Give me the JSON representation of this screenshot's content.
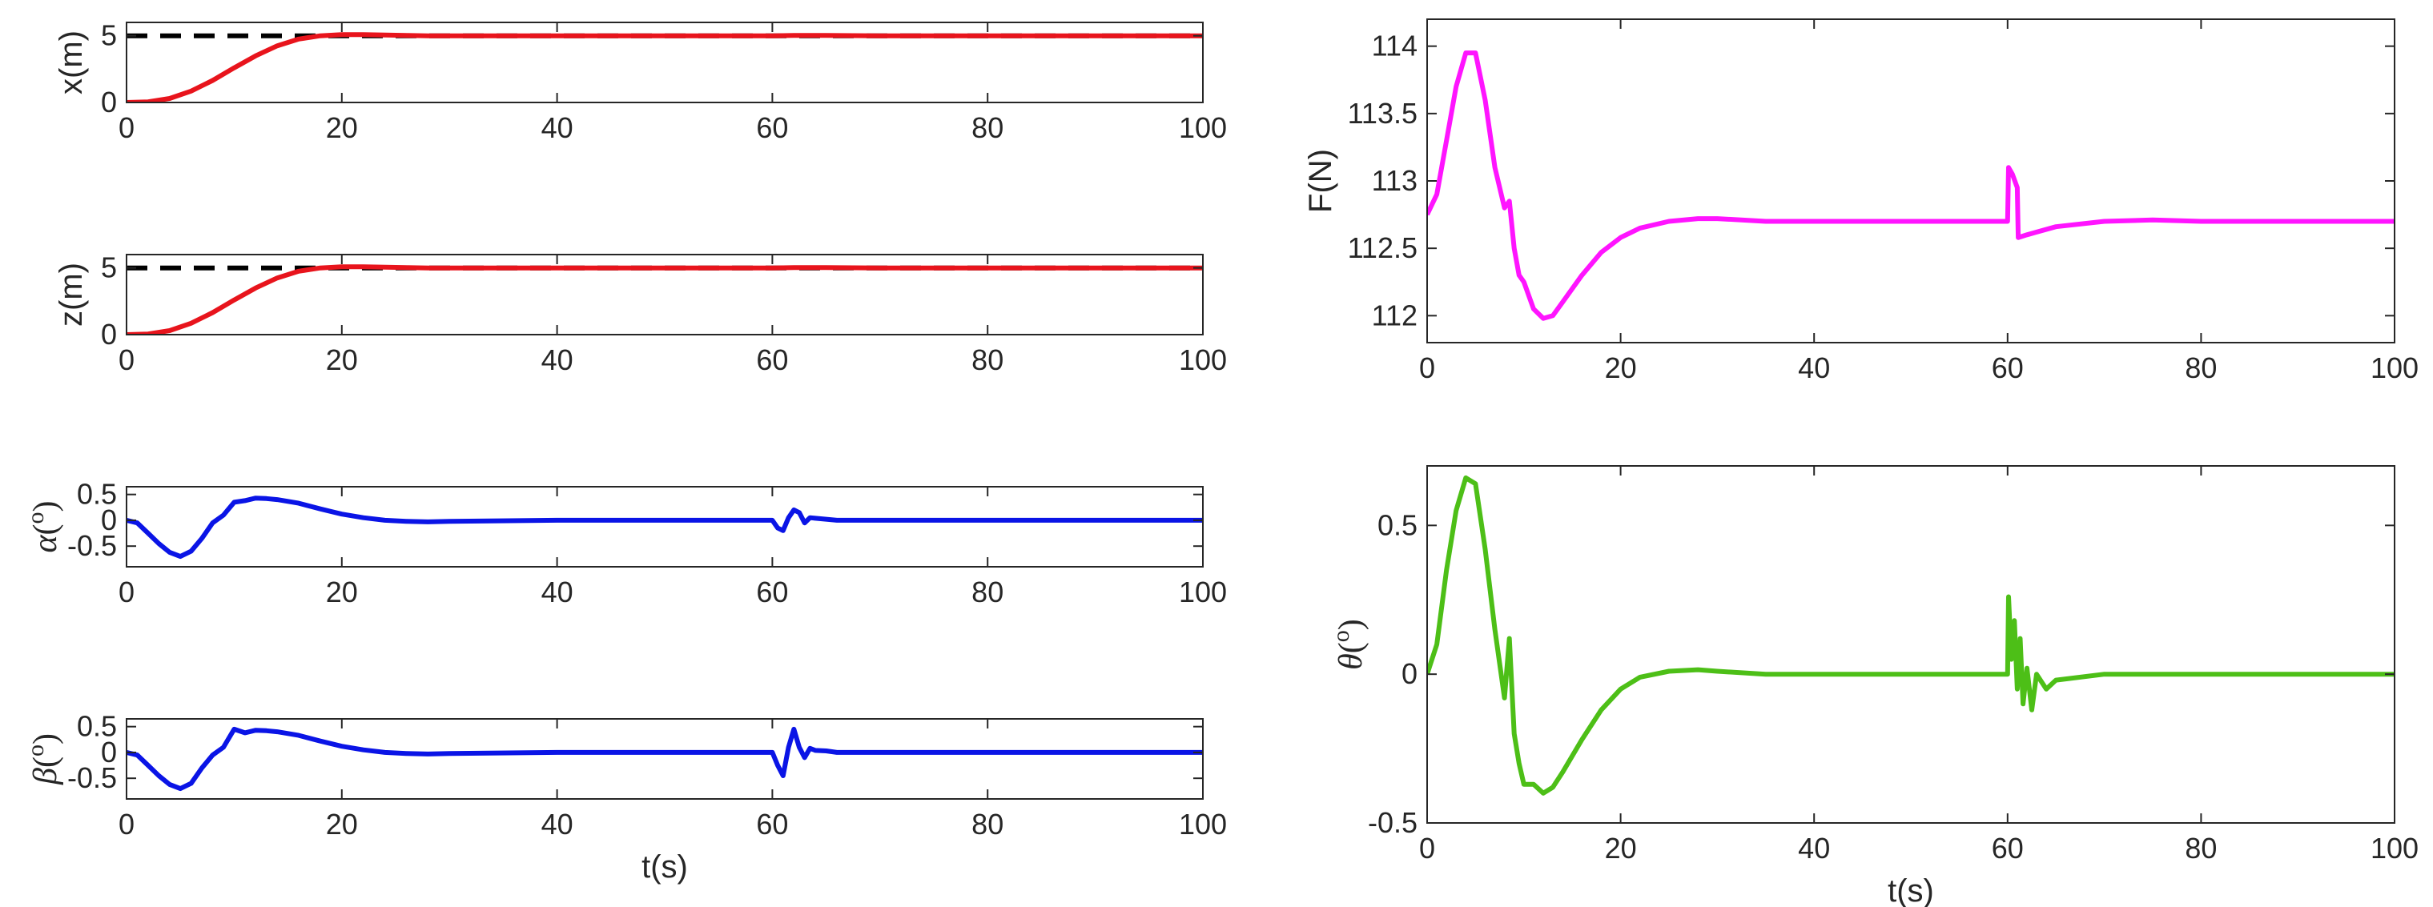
{
  "chart_data": [
    {
      "type": "line",
      "name": "x-position",
      "ylabel": "x(m)",
      "xlabel": "",
      "xlim": [
        0,
        100
      ],
      "ylim": [
        0,
        6
      ],
      "xticks": [
        0,
        20,
        40,
        60,
        80,
        100
      ],
      "xtick_labels": [
        "0",
        "20",
        "40",
        "60",
        "80",
        "100"
      ],
      "yticks": [
        0,
        5
      ],
      "ytick_labels": [
        "0",
        "5"
      ],
      "series": [
        {
          "name": "reference",
          "color": "#000000",
          "style": "dashed",
          "x": [
            0,
            100
          ],
          "y": [
            5,
            5
          ]
        },
        {
          "name": "response",
          "color": "#e8141c",
          "style": "solid",
          "x": [
            0,
            2,
            4,
            6,
            8,
            10,
            12,
            14,
            16,
            18,
            20,
            22,
            24,
            26,
            28,
            30,
            40,
            50,
            60,
            62,
            65,
            70,
            80,
            90,
            100
          ],
          "y": [
            0,
            0.05,
            0.3,
            0.85,
            1.65,
            2.6,
            3.5,
            4.25,
            4.75,
            5.0,
            5.08,
            5.08,
            5.05,
            5.02,
            5.0,
            5.0,
            5.0,
            5.0,
            5.0,
            5.03,
            5.02,
            5.0,
            5.0,
            5.0,
            5.0
          ]
        }
      ]
    },
    {
      "type": "line",
      "name": "z-position",
      "ylabel": "z(m)",
      "xlabel": "",
      "xlim": [
        0,
        100
      ],
      "ylim": [
        0,
        6
      ],
      "xticks": [
        0,
        20,
        40,
        60,
        80,
        100
      ],
      "xtick_labels": [
        "0",
        "20",
        "40",
        "60",
        "80",
        "100"
      ],
      "yticks": [
        0,
        5
      ],
      "ytick_labels": [
        "0",
        "5"
      ],
      "series": [
        {
          "name": "reference",
          "color": "#000000",
          "style": "dashed",
          "x": [
            0,
            100
          ],
          "y": [
            5,
            5
          ]
        },
        {
          "name": "response",
          "color": "#e8141c",
          "style": "solid",
          "x": [
            0,
            2,
            4,
            6,
            8,
            10,
            12,
            14,
            16,
            18,
            20,
            22,
            24,
            26,
            28,
            30,
            40,
            50,
            60,
            62,
            65,
            70,
            80,
            90,
            100
          ],
          "y": [
            0,
            0.05,
            0.3,
            0.85,
            1.65,
            2.6,
            3.5,
            4.25,
            4.75,
            5.0,
            5.08,
            5.08,
            5.05,
            5.02,
            5.0,
            5.0,
            5.0,
            5.0,
            5.0,
            5.03,
            5.02,
            5.0,
            5.0,
            5.0,
            5.0
          ]
        }
      ]
    },
    {
      "type": "line",
      "name": "alpha",
      "ylabel": "α(o)",
      "ylabel_greek": "α",
      "ylabel_sup": "o",
      "xlabel": "",
      "xlim": [
        0,
        100
      ],
      "ylim": [
        -0.9,
        0.65
      ],
      "xticks": [
        0,
        20,
        40,
        60,
        80,
        100
      ],
      "xtick_labels": [
        "0",
        "20",
        "40",
        "60",
        "80",
        "100"
      ],
      "yticks": [
        0.5,
        0,
        -0.5
      ],
      "ytick_labels": [
        "0.5",
        "0",
        "-0.5"
      ],
      "series": [
        {
          "name": "alpha",
          "color": "#0a14e6",
          "style": "solid",
          "x": [
            0,
            1,
            2,
            3,
            4,
            5,
            6,
            7,
            8,
            9,
            10,
            11,
            12,
            13,
            14,
            16,
            18,
            20,
            22,
            24,
            26,
            28,
            30,
            40,
            50,
            60,
            60.5,
            61,
            61.5,
            62,
            62.5,
            63,
            63.5,
            64,
            65,
            66,
            70,
            80,
            90,
            100
          ],
          "y": [
            0,
            -0.05,
            -0.25,
            -0.45,
            -0.62,
            -0.7,
            -0.6,
            -0.35,
            -0.05,
            0.1,
            0.35,
            0.38,
            0.43,
            0.42,
            0.4,
            0.33,
            0.22,
            0.12,
            0.05,
            0.0,
            -0.02,
            -0.03,
            -0.02,
            0,
            0,
            0,
            -0.15,
            -0.2,
            0.05,
            0.2,
            0.15,
            -0.05,
            0.05,
            0.04,
            0.02,
            0,
            0,
            0,
            0,
            0
          ]
        }
      ]
    },
    {
      "type": "line",
      "name": "beta",
      "ylabel": "β(o)",
      "ylabel_greek": "β",
      "ylabel_sup": "o",
      "xlabel": "t(s)",
      "xlim": [
        0,
        100
      ],
      "ylim": [
        -0.9,
        0.65
      ],
      "xticks": [
        0,
        20,
        40,
        60,
        80,
        100
      ],
      "xtick_labels": [
        "0",
        "20",
        "40",
        "60",
        "80",
        "100"
      ],
      "yticks": [
        0.5,
        0,
        -0.5
      ],
      "ytick_labels": [
        "0.5",
        "0",
        "-0.5"
      ],
      "series": [
        {
          "name": "beta",
          "color": "#0a14e6",
          "style": "solid",
          "x": [
            0,
            1,
            2,
            3,
            4,
            5,
            6,
            7,
            8,
            9,
            10,
            11,
            12,
            13,
            14,
            16,
            18,
            20,
            22,
            24,
            26,
            28,
            30,
            40,
            50,
            60,
            60.5,
            61,
            61.5,
            62,
            62.5,
            63,
            63.5,
            64,
            65,
            66,
            70,
            80,
            90,
            100
          ],
          "y": [
            0,
            -0.05,
            -0.25,
            -0.45,
            -0.62,
            -0.7,
            -0.6,
            -0.3,
            -0.05,
            0.1,
            0.45,
            0.38,
            0.43,
            0.42,
            0.4,
            0.33,
            0.22,
            0.12,
            0.05,
            0.0,
            -0.02,
            -0.03,
            -0.02,
            0,
            0,
            0,
            -0.25,
            -0.45,
            0.1,
            0.45,
            0.1,
            -0.1,
            0.08,
            0.04,
            0.03,
            0,
            0,
            0,
            0,
            0
          ]
        }
      ]
    },
    {
      "type": "line",
      "name": "thrust",
      "ylabel": "F(N)",
      "xlabel": "",
      "xlim": [
        0,
        100
      ],
      "ylim": [
        111.8,
        114.2
      ],
      "xticks": [
        0,
        20,
        40,
        60,
        80,
        100
      ],
      "xtick_labels": [
        "0",
        "20",
        "40",
        "60",
        "80",
        "100"
      ],
      "yticks": [
        114,
        113.5,
        113,
        112.5,
        112
      ],
      "ytick_labels": [
        "114",
        "113.5",
        "113",
        "112.5",
        "112"
      ],
      "series": [
        {
          "name": "F",
          "color": "#ff14ff",
          "style": "solid",
          "x": [
            0,
            1,
            2,
            3,
            4,
            5,
            6,
            7,
            8,
            8.5,
            9,
            9.5,
            10,
            11,
            12,
            13,
            14,
            16,
            18,
            20,
            22,
            25,
            28,
            30,
            35,
            40,
            50,
            60,
            60.1,
            60.5,
            61,
            61.1,
            62,
            65,
            70,
            75,
            80,
            90,
            100
          ],
          "y": [
            112.75,
            112.9,
            113.3,
            113.7,
            113.95,
            113.95,
            113.6,
            113.1,
            112.8,
            112.85,
            112.5,
            112.3,
            112.25,
            112.05,
            111.98,
            112.0,
            112.1,
            112.3,
            112.47,
            112.58,
            112.65,
            112.7,
            112.72,
            112.72,
            112.7,
            112.7,
            112.7,
            112.7,
            113.1,
            113.05,
            112.95,
            112.58,
            112.6,
            112.66,
            112.7,
            112.71,
            112.7,
            112.7,
            112.7
          ]
        }
      ]
    },
    {
      "type": "line",
      "name": "theta",
      "ylabel": "θ(o)",
      "ylabel_greek": "θ",
      "ylabel_sup": "o",
      "xlabel": "t(s)",
      "xlim": [
        0,
        100
      ],
      "ylim": [
        -0.5,
        0.7
      ],
      "xticks": [
        0,
        20,
        40,
        60,
        80,
        100
      ],
      "xtick_labels": [
        "0",
        "20",
        "40",
        "60",
        "80",
        "100"
      ],
      "yticks": [
        0.5,
        0,
        -0.5
      ],
      "ytick_labels": [
        "0.5",
        "0",
        "-0.5"
      ],
      "series": [
        {
          "name": "theta",
          "color": "#4dbf17",
          "style": "solid",
          "x": [
            0,
            1,
            2,
            3,
            4,
            5,
            6,
            7,
            8,
            8.5,
            9,
            9.5,
            10,
            11,
            12,
            13,
            14,
            16,
            18,
            20,
            22,
            25,
            28,
            30,
            35,
            40,
            50,
            60,
            60.1,
            60.4,
            60.7,
            61,
            61.3,
            61.6,
            62,
            62.5,
            63,
            64,
            65,
            70,
            80,
            90,
            100
          ],
          "y": [
            0,
            0.1,
            0.35,
            0.55,
            0.66,
            0.64,
            0.42,
            0.15,
            -0.08,
            0.12,
            -0.2,
            -0.3,
            -0.37,
            -0.37,
            -0.4,
            -0.38,
            -0.33,
            -0.22,
            -0.12,
            -0.05,
            -0.01,
            0.01,
            0.015,
            0.01,
            0.0,
            0,
            0,
            0,
            0.26,
            0.05,
            0.18,
            -0.05,
            0.12,
            -0.1,
            0.02,
            -0.12,
            0.0,
            -0.05,
            -0.02,
            0.0,
            0,
            0,
            0
          ]
        }
      ]
    }
  ]
}
